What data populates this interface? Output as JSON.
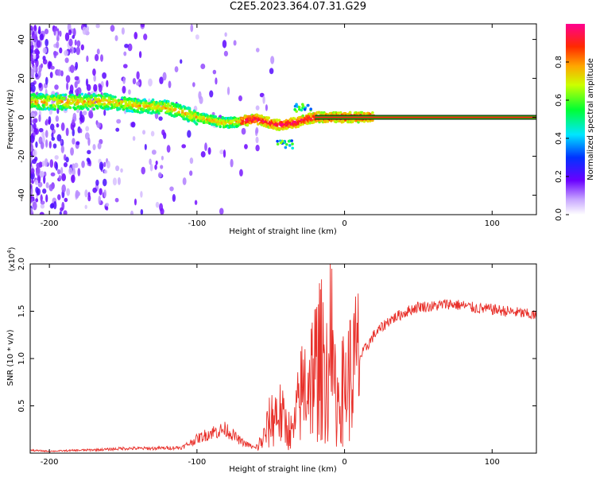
{
  "title": "C2E5.2023.364.07.31.G29",
  "chart_data": [
    {
      "type": "heatmap",
      "name": "spectrogram",
      "xlabel": "Height of straight line (km)",
      "ylabel": "Frequency (Hz)",
      "xlim": [
        -213,
        130
      ],
      "ylim": [
        -50,
        48
      ],
      "xticks": [
        -200,
        -100,
        0,
        100
      ],
      "yticks": [
        -40,
        -20,
        0,
        20,
        40
      ],
      "colorbar": {
        "label": "Normalized spectral amplitude",
        "range": [
          0,
          1
        ],
        "ticks": [
          "0.0",
          "0.2",
          "0.4",
          "0.6",
          "0.8"
        ],
        "tick_values": [
          0.0,
          0.2,
          0.4,
          0.6,
          0.8
        ]
      },
      "ridge": [
        {
          "x": -210,
          "f": 8
        },
        {
          "x": -170,
          "f": 8
        },
        {
          "x": -160,
          "f": 8
        },
        {
          "x": -140,
          "f": 6
        },
        {
          "x": -120,
          "f": 5
        },
        {
          "x": -100,
          "f": 0
        },
        {
          "x": -80,
          "f": -3
        },
        {
          "x": -60,
          "f": -1
        },
        {
          "x": -45,
          "f": -4
        },
        {
          "x": -35,
          "f": -3
        },
        {
          "x": -20,
          "f": 0
        },
        {
          "x": 0,
          "f": 0
        },
        {
          "x": 130,
          "f": 0
        }
      ],
      "features": [
        {
          "x": -40,
          "f": -14,
          "note": "secondary component"
        },
        {
          "x": -28,
          "f": 5,
          "note": "spike"
        }
      ]
    },
    {
      "type": "line",
      "name": "snr",
      "xlabel": "Height of straight line (km)",
      "ylabel": "SNR (10 * v/v)",
      "y_exponent_label": "(x10",
      "y_exponent_power": "4",
      "y_exponent_close": ")",
      "xlim": [
        -213,
        130
      ],
      "ylim": [
        0,
        2.0
      ],
      "xticks": [
        -200,
        -100,
        0,
        100
      ],
      "yticks": [
        0.5,
        1.0,
        1.5,
        2.0
      ],
      "ytick_labels": [
        "0.5",
        "1.0",
        "1.5",
        "2.0"
      ],
      "color": "#e8302a",
      "series": [
        {
          "name": "SNR",
          "x": [
            -213,
            -200,
            -180,
            -160,
            -150,
            -130,
            -110,
            -100,
            -90,
            -80,
            -70,
            -60,
            -55,
            -50,
            -45,
            -40,
            -35,
            -30,
            -25,
            -20,
            -15,
            -10,
            -5,
            0,
            10,
            20,
            30,
            40,
            50,
            60,
            70,
            80,
            90,
            100,
            110,
            120,
            130
          ],
          "y": [
            0.03,
            0.02,
            0.03,
            0.04,
            0.05,
            0.05,
            0.06,
            0.15,
            0.22,
            0.25,
            0.12,
            0.05,
            0.15,
            0.35,
            0.45,
            0.3,
            0.2,
            0.6,
            0.8,
            0.9,
            1.0,
            0.8,
            0.55,
            0.7,
            1.0,
            1.25,
            1.4,
            1.48,
            1.55,
            1.55,
            1.58,
            1.56,
            1.53,
            1.52,
            1.5,
            1.48,
            1.45
          ]
        }
      ]
    }
  ]
}
